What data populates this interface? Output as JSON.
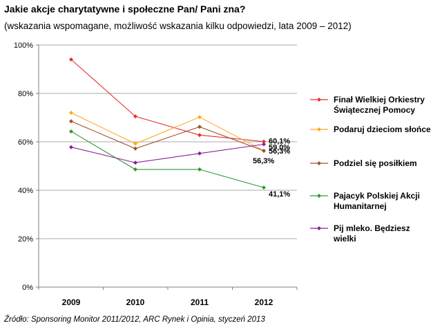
{
  "header": {
    "title": "Jakie akcje charytatywne i społeczne Pan/ Pani zna?",
    "subtitle": "(wskazania wspomagane, możliwość wskazania kilku odpowiedzi, lata 2009 – 2012)"
  },
  "footer": {
    "source": "Źródło: Sponsoring Monitor 2011/2012, ARC Rynek i Opinia, styczeń 2013"
  },
  "chart_data": {
    "type": "line",
    "title": "Jakie akcje charytatywne i społeczne Pan/ Pani zna?",
    "xlabel": "",
    "ylabel": "",
    "categories": [
      "2009",
      "2010",
      "2011",
      "2012"
    ],
    "ylim": [
      0,
      100
    ],
    "yticks": [
      0,
      20,
      40,
      60,
      80,
      100
    ],
    "ytick_labels": [
      "0%",
      "20%",
      "40%",
      "60%",
      "80%",
      "100%"
    ],
    "grid": true,
    "legend_position": "right",
    "series": [
      {
        "name": "Finał Wielkiej Orkiestry Świątecznej Pomocy",
        "legend_lines": [
          "Finał Wielkiej Orkiestry",
          "Świątecznej Pomocy"
        ],
        "color": "#e8302a",
        "values": [
          94.0,
          70.5,
          62.8,
          60.1
        ],
        "end_label": "60,1%"
      },
      {
        "name": "Podaruj dzieciom słońce",
        "legend_lines": [
          "Podaruj dzieciom słońce"
        ],
        "color": "#ffa823",
        "values": [
          72.0,
          59.2,
          70.2,
          56.3
        ],
        "end_label": "56,3%"
      },
      {
        "name": "Podziel się posiłkiem",
        "legend_lines": [
          "Podziel się posiłkiem"
        ],
        "color": "#a0502a",
        "values": [
          68.5,
          57.2,
          66.2,
          56.3
        ],
        "end_label": "56,3%"
      },
      {
        "name": "Pajacyk Polskiej Akcji Humanitarnej",
        "legend_lines": [
          "Pajacyk Polskiej Akcji",
          "Humanitarnej"
        ],
        "color": "#2e9a2e",
        "values": [
          64.3,
          48.6,
          48.6,
          41.1
        ],
        "end_label": "41,1%"
      },
      {
        "name": "Pij mleko. Będziesz wielki",
        "legend_lines": [
          "Pij mleko. Będziesz",
          "wielki"
        ],
        "color": "#8a1e9c",
        "values": [
          57.8,
          51.4,
          55.2,
          59.0
        ],
        "end_label": "59,0%"
      }
    ]
  }
}
